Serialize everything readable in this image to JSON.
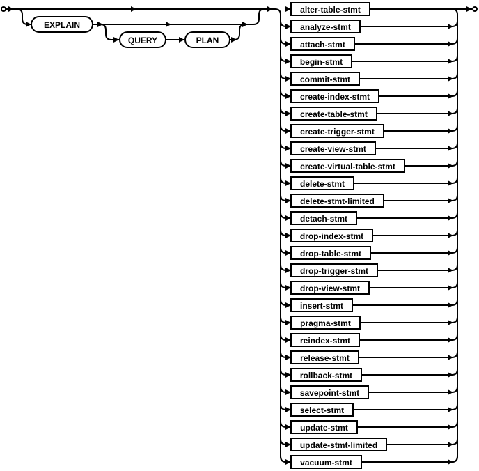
{
  "diagram": {
    "keywords": [
      "EXPLAIN",
      "QUERY",
      "PLAN"
    ],
    "statements": [
      "alter-table-stmt",
      "analyze-stmt",
      "attach-stmt",
      "begin-stmt",
      "commit-stmt",
      "create-index-stmt",
      "create-table-stmt",
      "create-trigger-stmt",
      "create-view-stmt",
      "create-virtual-table-stmt",
      "delete-stmt",
      "delete-stmt-limited",
      "detach-stmt",
      "drop-index-stmt",
      "drop-table-stmt",
      "drop-trigger-stmt",
      "drop-view-stmt",
      "insert-stmt",
      "pragma-stmt",
      "reindex-stmt",
      "release-stmt",
      "rollback-stmt",
      "savepoint-stmt",
      "select-stmt",
      "update-stmt",
      "update-stmt-limited",
      "vacuum-stmt"
    ]
  }
}
